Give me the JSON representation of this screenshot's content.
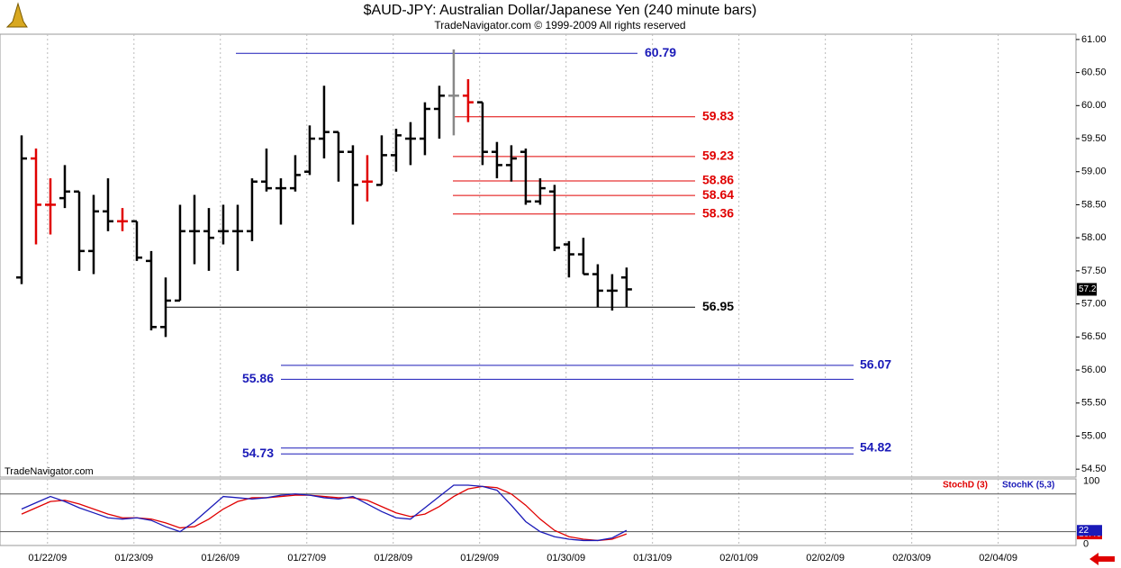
{
  "chart_data": [
    {
      "type": "ohlc",
      "title": "$AUD-JPY:  Australian Dollar/Japanese Yen  (240 minute bars)",
      "subtitle": "TradeNavigator.com © 1999-2009 All rights reserved",
      "watermark": "TradeNavigator.com",
      "x": [
        0,
        1,
        2,
        3,
        4,
        5,
        6,
        7,
        8,
        9,
        10,
        11,
        12,
        13,
        14,
        15,
        16,
        17,
        18,
        19,
        20,
        21,
        22,
        23,
        24,
        25,
        26,
        27,
        28,
        29,
        30,
        31,
        32,
        33,
        34,
        35,
        36,
        37,
        38,
        39,
        40,
        41,
        42
      ],
      "open": [
        57.4,
        59.2,
        58.5,
        58.6,
        58.7,
        57.8,
        58.4,
        58.25,
        58.25,
        57.65,
        56.65,
        57.05,
        58.1,
        58.1,
        58.1,
        58.1,
        58.1,
        58.85,
        58.75,
        58.75,
        59.0,
        59.5,
        59.6,
        59.3,
        58.85,
        58.8,
        59.25,
        59.5,
        59.5,
        59.95,
        60.15,
        60.15,
        60.05,
        59.3,
        59.1,
        59.3,
        58.55,
        58.7,
        57.9,
        57.75,
        57.45,
        57.2,
        57.4
      ],
      "high": [
        59.55,
        59.35,
        58.9,
        59.1,
        58.7,
        58.65,
        58.9,
        58.45,
        58.25,
        57.8,
        57.4,
        58.5,
        58.65,
        58.45,
        58.5,
        58.5,
        58.9,
        59.35,
        58.9,
        59.25,
        59.7,
        60.3,
        59.6,
        59.4,
        59.25,
        59.55,
        59.65,
        59.75,
        60.05,
        60.3,
        60.85,
        60.4,
        60.05,
        59.45,
        59.4,
        59.35,
        58.9,
        58.8,
        57.95,
        58.0,
        57.6,
        57.45,
        57.55
      ],
      "low": [
        57.3,
        57.9,
        58.05,
        58.45,
        57.5,
        57.45,
        58.1,
        58.1,
        57.65,
        56.6,
        56.5,
        57.05,
        57.6,
        57.5,
        57.9,
        57.5,
        57.95,
        58.7,
        58.2,
        58.7,
        58.95,
        59.2,
        58.85,
        58.2,
        58.55,
        58.8,
        59.0,
        59.1,
        59.25,
        59.5,
        59.55,
        59.75,
        59.1,
        58.9,
        58.85,
        58.5,
        58.5,
        57.8,
        57.4,
        57.45,
        56.95,
        56.9,
        56.95
      ],
      "close": [
        59.2,
        58.5,
        58.5,
        58.7,
        57.8,
        58.4,
        58.25,
        58.25,
        57.7,
        56.65,
        57.05,
        58.1,
        58.1,
        58.0,
        58.1,
        58.1,
        58.85,
        58.75,
        58.75,
        58.95,
        59.5,
        59.6,
        59.3,
        58.8,
        58.85,
        59.25,
        59.55,
        59.5,
        59.95,
        60.15,
        60.15,
        60.05,
        59.3,
        59.1,
        59.2,
        58.55,
        58.75,
        57.85,
        57.75,
        57.45,
        57.2,
        57.2,
        57.22
      ],
      "colors": [
        "#000",
        "#e00000",
        "#e00000",
        "#000",
        "#000",
        "#000",
        "#000",
        "#e00000",
        "#000",
        "#000",
        "#000",
        "#000",
        "#000",
        "#000",
        "#000",
        "#000",
        "#000",
        "#000",
        "#000",
        "#000",
        "#000",
        "#000",
        "#000",
        "#000",
        "#e00000",
        "#000",
        "#000",
        "#000",
        "#000",
        "#000",
        "#888888",
        "#e00000",
        "#000",
        "#000",
        "#000",
        "#000",
        "#000",
        "#000",
        "#000",
        "#000",
        "#000",
        "#000",
        "#000"
      ],
      "xlim": [
        -1.5,
        73.2
      ],
      "xticks": [
        {
          "value": 1.8,
          "label": "01/22/09"
        },
        {
          "value": 7.8,
          "label": "01/23/09"
        },
        {
          "value": 13.8,
          "label": "01/26/09"
        },
        {
          "value": 19.8,
          "label": "01/27/09"
        },
        {
          "value": 25.8,
          "label": "01/28/09"
        },
        {
          "value": 31.8,
          "label": "01/29/09"
        },
        {
          "value": 37.8,
          "label": "01/30/09"
        },
        {
          "value": 43.8,
          "label": "01/31/09"
        },
        {
          "value": 49.8,
          "label": "02/01/09"
        },
        {
          "value": 55.8,
          "label": "02/02/09"
        },
        {
          "value": 61.8,
          "label": "02/03/09"
        },
        {
          "value": 67.8,
          "label": "02/04/09"
        }
      ],
      "ylim": [
        54.38,
        61.08
      ],
      "yticks": [
        {
          "value": 61,
          "label": "61.00"
        },
        {
          "value": 60.5,
          "label": "60.50"
        },
        {
          "value": 60,
          "label": "60.00"
        },
        {
          "value": 59.5,
          "label": "59.50"
        },
        {
          "value": 59,
          "label": "59.00"
        },
        {
          "value": 58.5,
          "label": "58.50"
        },
        {
          "value": 58,
          "label": "58.00"
        },
        {
          "value": 57.5,
          "label": "57.50"
        },
        {
          "value": 57,
          "label": "57.00"
        },
        {
          "value": 56.5,
          "label": "56.50"
        },
        {
          "value": 56,
          "label": "56.00"
        },
        {
          "value": 55.5,
          "label": "55.50"
        },
        {
          "value": 55,
          "label": "55.00"
        },
        {
          "value": 54.5,
          "label": "54.50"
        }
      ],
      "last_price": 57.22,
      "levels": [
        {
          "value": 60.79,
          "color": "#1a1ab8"
        },
        {
          "value": 59.83,
          "color": "#e00000"
        },
        {
          "value": 59.23,
          "color": "#e00000"
        },
        {
          "value": 58.86,
          "color": "#e00000"
        },
        {
          "value": 58.64,
          "color": "#e00000"
        },
        {
          "value": 58.36,
          "color": "#e00000"
        },
        {
          "value": 56.95,
          "color": "#000000"
        },
        {
          "value": 56.07,
          "color": "#1a1ab8"
        },
        {
          "value": 55.86,
          "color": "#1a1ab8"
        },
        {
          "value": 54.82,
          "color": "#1a1ab8"
        },
        {
          "value": 54.73,
          "color": "#1a1ab8"
        }
      ]
    },
    {
      "type": "line",
      "series": [
        {
          "name": "StochD (3)",
          "color": "#e00000",
          "values": [
            48,
            58,
            68,
            70,
            64,
            56,
            48,
            42,
            42,
            40,
            34,
            26,
            28,
            40,
            56,
            68,
            74,
            74,
            76,
            78,
            78,
            76,
            74,
            74,
            70,
            60,
            50,
            44,
            48,
            60,
            76,
            88,
            92,
            90,
            80,
            62,
            40,
            22,
            12,
            8,
            6,
            8,
            16.46
          ]
        },
        {
          "name": "StochK (5,3)",
          "color": "#1a1ab8",
          "values": [
            56,
            66,
            76,
            68,
            58,
            50,
            42,
            40,
            42,
            38,
            28,
            20,
            36,
            56,
            76,
            74,
            72,
            74,
            78,
            80,
            78,
            74,
            72,
            76,
            64,
            52,
            42,
            40,
            58,
            76,
            94,
            94,
            92,
            86,
            62,
            36,
            20,
            12,
            8,
            6,
            6,
            10,
            22
          ]
        }
      ],
      "ylim": [
        -2,
        104
      ],
      "yticks": [
        0,
        100
      ],
      "levels": [
        80,
        20
      ]
    }
  ]
}
